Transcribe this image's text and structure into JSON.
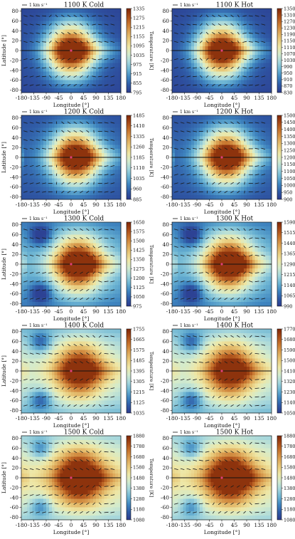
{
  "figure": {
    "xlabel": "Longitude [°]",
    "ylabel": "Latitude [°]",
    "cbar_label": "Temperature [K]",
    "quiver_key": "1 km s⁻¹",
    "substellar_marker_color": "#e0407a",
    "colormap": [
      "#2c3b8f",
      "#2f5aa6",
      "#3f86c0",
      "#6db5d3",
      "#a5d6dc",
      "#d3ebcd",
      "#eee7a6",
      "#e8c97a",
      "#dba254",
      "#c8762f",
      "#a84b18",
      "#7f2708"
    ]
  },
  "chart_data": [
    {
      "type": "heatmap",
      "title": "1100 K Cold",
      "xlabel": "Longitude [°]",
      "ylabel": "Latitude [°]",
      "xlim": [
        -180,
        180
      ],
      "ylim": [
        -85,
        85
      ],
      "xticks": [
        -180,
        -135,
        -90,
        -45,
        0,
        45,
        90,
        135,
        180
      ],
      "yticks": [
        -80,
        -60,
        -40,
        -20,
        0,
        20,
        40,
        60,
        80
      ],
      "colorbar": {
        "label": "Temperature [K]",
        "ticks": [
          795,
          855,
          915,
          975,
          1035,
          1095,
          1155,
          1215,
          1275,
          1335
        ]
      },
      "field": {
        "t_min": 795,
        "t_max": 1335,
        "hotspot_lon": 0,
        "hot_rel": 1.0,
        "night_rel": 0.05,
        "vortex_rel": 0.0
      }
    },
    {
      "type": "heatmap",
      "title": "1100 K Hot",
      "xlabel": "Longitude [°]",
      "ylabel": "",
      "xlim": [
        -180,
        180
      ],
      "ylim": [
        -85,
        85
      ],
      "xticks": [
        -180,
        -135,
        -90,
        -45,
        0,
        45,
        90,
        135,
        180
      ],
      "yticks": [
        -80,
        -60,
        -40,
        -20,
        0,
        20,
        40,
        60,
        80
      ],
      "colorbar": {
        "label": "Temperature [K]",
        "ticks": [
          830,
          870,
          910,
          950,
          990,
          1030,
          1070,
          1110,
          1150,
          1190,
          1230,
          1270,
          1310,
          1350
        ]
      },
      "field": {
        "t_min": 830,
        "t_max": 1350,
        "hotspot_lon": 0,
        "hot_rel": 1.0,
        "night_rel": 0.05,
        "vortex_rel": 0.0
      }
    },
    {
      "type": "heatmap",
      "title": "1200 K Cold",
      "xlabel": "Longitude [°]",
      "ylabel": "Latitude [°]",
      "xlim": [
        -180,
        180
      ],
      "ylim": [
        -85,
        85
      ],
      "xticks": [
        -180,
        -135,
        -90,
        -45,
        0,
        45,
        90,
        135,
        180
      ],
      "yticks": [
        -80,
        -60,
        -40,
        -20,
        0,
        20,
        40,
        60,
        80
      ],
      "colorbar": {
        "label": "Temperature [K]",
        "ticks": [
          885,
          960,
          1035,
          1110,
          1185,
          1260,
          1335,
          1410,
          1485
        ]
      },
      "field": {
        "t_min": 885,
        "t_max": 1485,
        "hotspot_lon": 15,
        "hot_rel": 1.0,
        "night_rel": 0.1,
        "vortex_rel": 0.0
      }
    },
    {
      "type": "heatmap",
      "title": "1200 K Hot",
      "xlabel": "Longitude [°]",
      "ylabel": "",
      "xlim": [
        -180,
        180
      ],
      "ylim": [
        -85,
        85
      ],
      "xticks": [
        -180,
        -135,
        -90,
        -45,
        0,
        45,
        90,
        135,
        180
      ],
      "yticks": [
        -80,
        -60,
        -40,
        -20,
        0,
        20,
        40,
        60,
        80
      ],
      "colorbar": {
        "label": "Temperature [K]",
        "ticks": [
          900,
          950,
          1000,
          1050,
          1100,
          1150,
          1200,
          1250,
          1300,
          1350,
          1400,
          1450,
          1500
        ]
      },
      "field": {
        "t_min": 900,
        "t_max": 1500,
        "hotspot_lon": 15,
        "hot_rel": 1.0,
        "night_rel": 0.1,
        "vortex_rel": 0.0
      }
    },
    {
      "type": "heatmap",
      "title": "1300 K Cold",
      "xlabel": "Longitude [°]",
      "ylabel": "Latitude [°]",
      "xlim": [
        -180,
        180
      ],
      "ylim": [
        -85,
        85
      ],
      "xticks": [
        -180,
        -135,
        -90,
        -45,
        0,
        45,
        90,
        135,
        180
      ],
      "yticks": [
        -80,
        -60,
        -40,
        -20,
        0,
        20,
        40,
        60,
        80
      ],
      "colorbar": {
        "label": "Temperature [K]",
        "ticks": [
          975,
          1050,
          1125,
          1200,
          1275,
          1350,
          1425,
          1500,
          1575,
          1650
        ]
      },
      "field": {
        "t_min": 975,
        "t_max": 1650,
        "hotspot_lon": 25,
        "hot_rel": 1.0,
        "night_rel": 0.25,
        "vortex_rel": 0.9
      }
    },
    {
      "type": "heatmap",
      "title": "1300 K Hot",
      "xlabel": "Longitude [°]",
      "ylabel": "",
      "xlim": [
        -180,
        180
      ],
      "ylim": [
        -85,
        85
      ],
      "xticks": [
        -180,
        -135,
        -90,
        -45,
        0,
        45,
        90,
        135,
        180
      ],
      "yticks": [
        -80,
        -60,
        -40,
        -20,
        0,
        20,
        40,
        60,
        80
      ],
      "colorbar": {
        "label": "Temperature [K]",
        "ticks": [
          990,
          1065,
          1140,
          1215,
          1290,
          1365,
          1440,
          1515,
          1590
        ]
      },
      "field": {
        "t_min": 990,
        "t_max": 1590,
        "hotspot_lon": 25,
        "hot_rel": 1.0,
        "night_rel": 0.25,
        "vortex_rel": 0.9
      }
    },
    {
      "type": "heatmap",
      "title": "1400 K Cold",
      "xlabel": "Longitude [°]",
      "ylabel": "Latitude [°]",
      "xlim": [
        -180,
        180
      ],
      "ylim": [
        -85,
        85
      ],
      "xticks": [
        -180,
        -135,
        -90,
        -45,
        0,
        45,
        90,
        135,
        180
      ],
      "yticks": [
        -80,
        -60,
        -40,
        -20,
        0,
        20,
        40,
        60,
        80
      ],
      "colorbar": {
        "label": "Temperature [K]",
        "ticks": [
          1035,
          1125,
          1215,
          1305,
          1395,
          1485,
          1575,
          1665,
          1755
        ]
      },
      "field": {
        "t_min": 1035,
        "t_max": 1755,
        "hotspot_lon": 30,
        "hot_rel": 0.85,
        "night_rel": 0.45,
        "vortex_rel": 1.0
      }
    },
    {
      "type": "heatmap",
      "title": "1400 K Hot",
      "xlabel": "Longitude [°]",
      "ylabel": "",
      "xlim": [
        -180,
        180
      ],
      "ylim": [
        -85,
        85
      ],
      "xticks": [
        -180,
        -135,
        -90,
        -45,
        0,
        45,
        90,
        135,
        180
      ],
      "yticks": [
        -80,
        -60,
        -40,
        -20,
        0,
        20,
        40,
        60,
        80
      ],
      "colorbar": {
        "label": "Temperature [K]",
        "ticks": [
          1050,
          1140,
          1230,
          1320,
          1410,
          1500,
          1590,
          1680,
          1770
        ]
      },
      "field": {
        "t_min": 1050,
        "t_max": 1770,
        "hotspot_lon": 30,
        "hot_rel": 0.85,
        "night_rel": 0.45,
        "vortex_rel": 1.0
      }
    },
    {
      "type": "heatmap",
      "title": "1500 K Cold",
      "xlabel": "Longitude [°]",
      "ylabel": "Latitude [°]",
      "xlim": [
        -180,
        180
      ],
      "ylim": [
        -85,
        85
      ],
      "xticks": [
        -180,
        -135,
        -90,
        -45,
        0,
        45,
        90,
        135,
        180
      ],
      "yticks": [
        -80,
        -60,
        -40,
        -20,
        0,
        20,
        40,
        60,
        80
      ],
      "colorbar": {
        "label": "Temperature [K]",
        "ticks": [
          1080,
          1180,
          1280,
          1380,
          1480,
          1580,
          1680,
          1780,
          1880
        ]
      },
      "field": {
        "t_min": 1080,
        "t_max": 1880,
        "hotspot_lon": 30,
        "hot_rel": 1.0,
        "night_rel": 0.55,
        "vortex_rel": 1.0
      }
    },
    {
      "type": "heatmap",
      "title": "1500 K Hot",
      "xlabel": "Longitude [°]",
      "ylabel": "",
      "xlim": [
        -180,
        180
      ],
      "ylim": [
        -85,
        85
      ],
      "xticks": [
        -180,
        -135,
        -90,
        -45,
        0,
        45,
        90,
        135,
        180
      ],
      "yticks": [
        -80,
        -60,
        -40,
        -20,
        0,
        20,
        40,
        60,
        80
      ],
      "colorbar": {
        "label": "Temperature [K]",
        "ticks": [
          1080,
          1180,
          1280,
          1380,
          1480,
          1580,
          1680,
          1780,
          1880
        ]
      },
      "field": {
        "t_min": 1080,
        "t_max": 1880,
        "hotspot_lon": 30,
        "hot_rel": 1.0,
        "night_rel": 0.55,
        "vortex_rel": 1.0
      }
    }
  ]
}
